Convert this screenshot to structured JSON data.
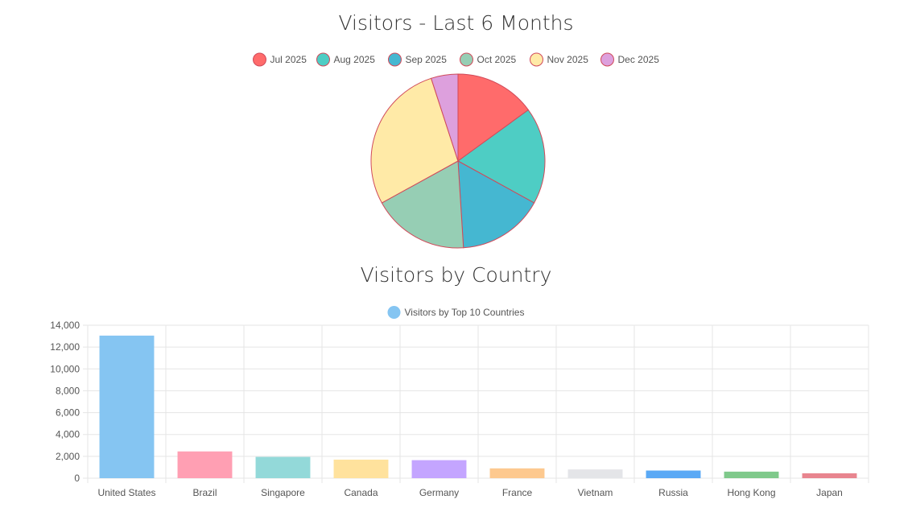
{
  "charts": {
    "pie_title": "Visitors - Last 6 Months",
    "bar_title": "Visitors by Country"
  },
  "chart_data": [
    {
      "type": "pie",
      "title": "Visitors - Last 6 Months",
      "categories": [
        "Jul 2025",
        "Aug 2025",
        "Sep 2025",
        "Oct 2025",
        "Nov 2025",
        "Dec 2025"
      ],
      "values": [
        15,
        18,
        16,
        18,
        28,
        5
      ],
      "colors": [
        "#ff6b6b",
        "#4ecdc4",
        "#45b7d1",
        "#96ceb4",
        "#ffeaa7",
        "#dda0dd"
      ],
      "border_color": "#d04a5a",
      "legend_position": "top"
    },
    {
      "type": "bar",
      "title": "Visitors by Country",
      "series": [
        {
          "name": "Visitors by Top 10 Countries",
          "values": [
            13050,
            2450,
            1950,
            1700,
            1650,
            900,
            800,
            700,
            600,
            450
          ]
        }
      ],
      "categories": [
        "United States",
        "Brazil",
        "Singapore",
        "Canada",
        "Germany",
        "France",
        "Vietnam",
        "Russia",
        "Hong Kong",
        "Japan"
      ],
      "colors": [
        "#85c5f2",
        "#ff9fb3",
        "#93d9d9",
        "#ffe29d",
        "#c4a5ff",
        "#fdc98f",
        "#e4e5e8",
        "#5aa9f5",
        "#7fc98b",
        "#e8858f"
      ],
      "legend_color": "#85c5f2",
      "ylim": [
        0,
        14000
      ],
      "yticks": [
        "0",
        "2,000",
        "4,000",
        "6,000",
        "8,000",
        "10,000",
        "12,000",
        "14,000"
      ],
      "grid": true,
      "legend_position": "top"
    }
  ]
}
